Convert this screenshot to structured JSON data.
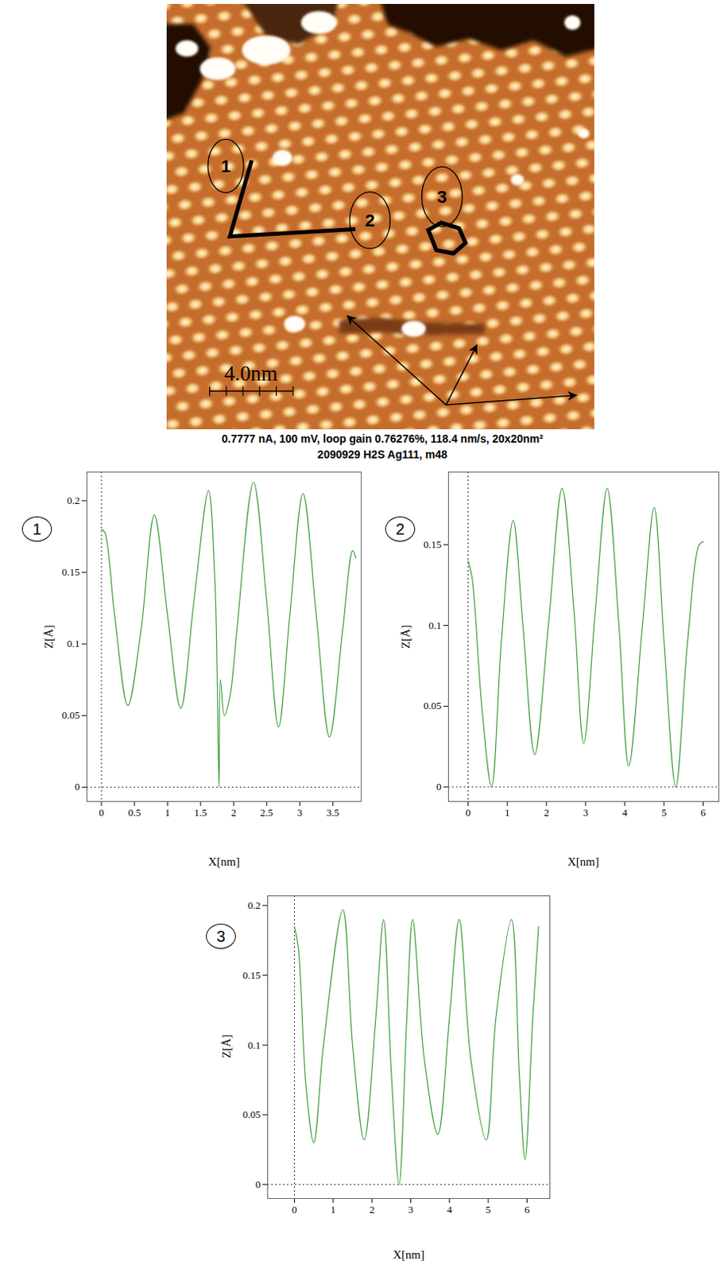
{
  "image": {
    "markers": [
      "1",
      "2",
      "3"
    ],
    "scale_bar": "4.0nm",
    "caption": [
      "0.7777 nA, 100 mV, loop gain 0.76276%, 118.4 nm/s, 20x20nm²",
      "2090929 H2S Ag111, m48"
    ]
  },
  "chart_data": [
    {
      "type": "line",
      "title": "1",
      "xlabel": "X[nm]",
      "ylabel": "Z[Å]",
      "color": "#3a9d3a",
      "x": [
        0,
        0.05,
        0.2,
        0.4,
        0.6,
        0.8,
        1.0,
        1.2,
        1.4,
        1.62,
        1.72,
        1.78,
        1.8,
        1.86,
        1.95,
        2.05,
        2.3,
        2.5,
        2.68,
        2.85,
        3.05,
        3.25,
        3.45,
        3.65,
        3.8,
        3.85
      ],
      "values": [
        0.18,
        0.178,
        0.12,
        0.057,
        0.11,
        0.19,
        0.12,
        0.055,
        0.13,
        0.207,
        0.14,
        0.0,
        0.075,
        0.05,
        0.065,
        0.11,
        0.213,
        0.13,
        0.042,
        0.12,
        0.205,
        0.12,
        0.035,
        0.11,
        0.165,
        0.16
      ],
      "xlim": [
        -0.22,
        3.93
      ],
      "ylim": [
        -0.01,
        0.22
      ],
      "xticks": [
        0,
        0.5,
        1,
        1.5,
        2,
        2.5,
        3,
        3.5
      ],
      "yticks": [
        0,
        0.05,
        0.1,
        0.15,
        0.2
      ]
    },
    {
      "type": "line",
      "title": "2",
      "xlabel": "X[nm]",
      "ylabel": "Z[Å]",
      "color": "#3a9d3a",
      "x": [
        0,
        0.1,
        0.35,
        0.6,
        0.85,
        1.15,
        1.4,
        1.7,
        2.05,
        2.4,
        2.7,
        2.95,
        3.25,
        3.55,
        3.85,
        4.1,
        4.45,
        4.75,
        5.0,
        5.3,
        5.6,
        5.9,
        6.0
      ],
      "values": [
        0.14,
        0.13,
        0.05,
        0.0,
        0.09,
        0.165,
        0.1,
        0.02,
        0.1,
        0.185,
        0.11,
        0.027,
        0.11,
        0.185,
        0.1,
        0.013,
        0.1,
        0.173,
        0.09,
        0.0,
        0.09,
        0.15,
        0.152
      ],
      "xlim": [
        -0.5,
        6.4
      ],
      "ylim": [
        -0.009,
        0.195
      ],
      "xticks": [
        0,
        1,
        2,
        3,
        4,
        5,
        6
      ],
      "yticks": [
        0,
        0.05,
        0.1,
        0.15
      ]
    },
    {
      "type": "line",
      "title": "3",
      "xlabel": "X[nm]",
      "ylabel": "Z[Å]",
      "color": "#3a9d3a",
      "x": [
        0,
        0.1,
        0.3,
        0.5,
        0.75,
        1.25,
        1.5,
        1.8,
        2.1,
        2.3,
        2.5,
        2.7,
        2.9,
        3.05,
        3.35,
        3.7,
        4.0,
        4.25,
        4.55,
        4.95,
        5.2,
        5.6,
        5.8,
        5.95,
        6.15,
        6.3
      ],
      "values": [
        0.185,
        0.17,
        0.07,
        0.03,
        0.1,
        0.197,
        0.1,
        0.032,
        0.12,
        0.19,
        0.08,
        0.0,
        0.12,
        0.19,
        0.09,
        0.036,
        0.12,
        0.19,
        0.09,
        0.032,
        0.12,
        0.19,
        0.08,
        0.018,
        0.12,
        0.185
      ],
      "xlim": [
        -0.69,
        6.59
      ],
      "ylim": [
        -0.01,
        0.207
      ],
      "xticks": [
        0,
        1,
        2,
        3,
        4,
        5,
        6
      ],
      "yticks": [
        0,
        0.05,
        0.1,
        0.15,
        0.2
      ]
    }
  ]
}
